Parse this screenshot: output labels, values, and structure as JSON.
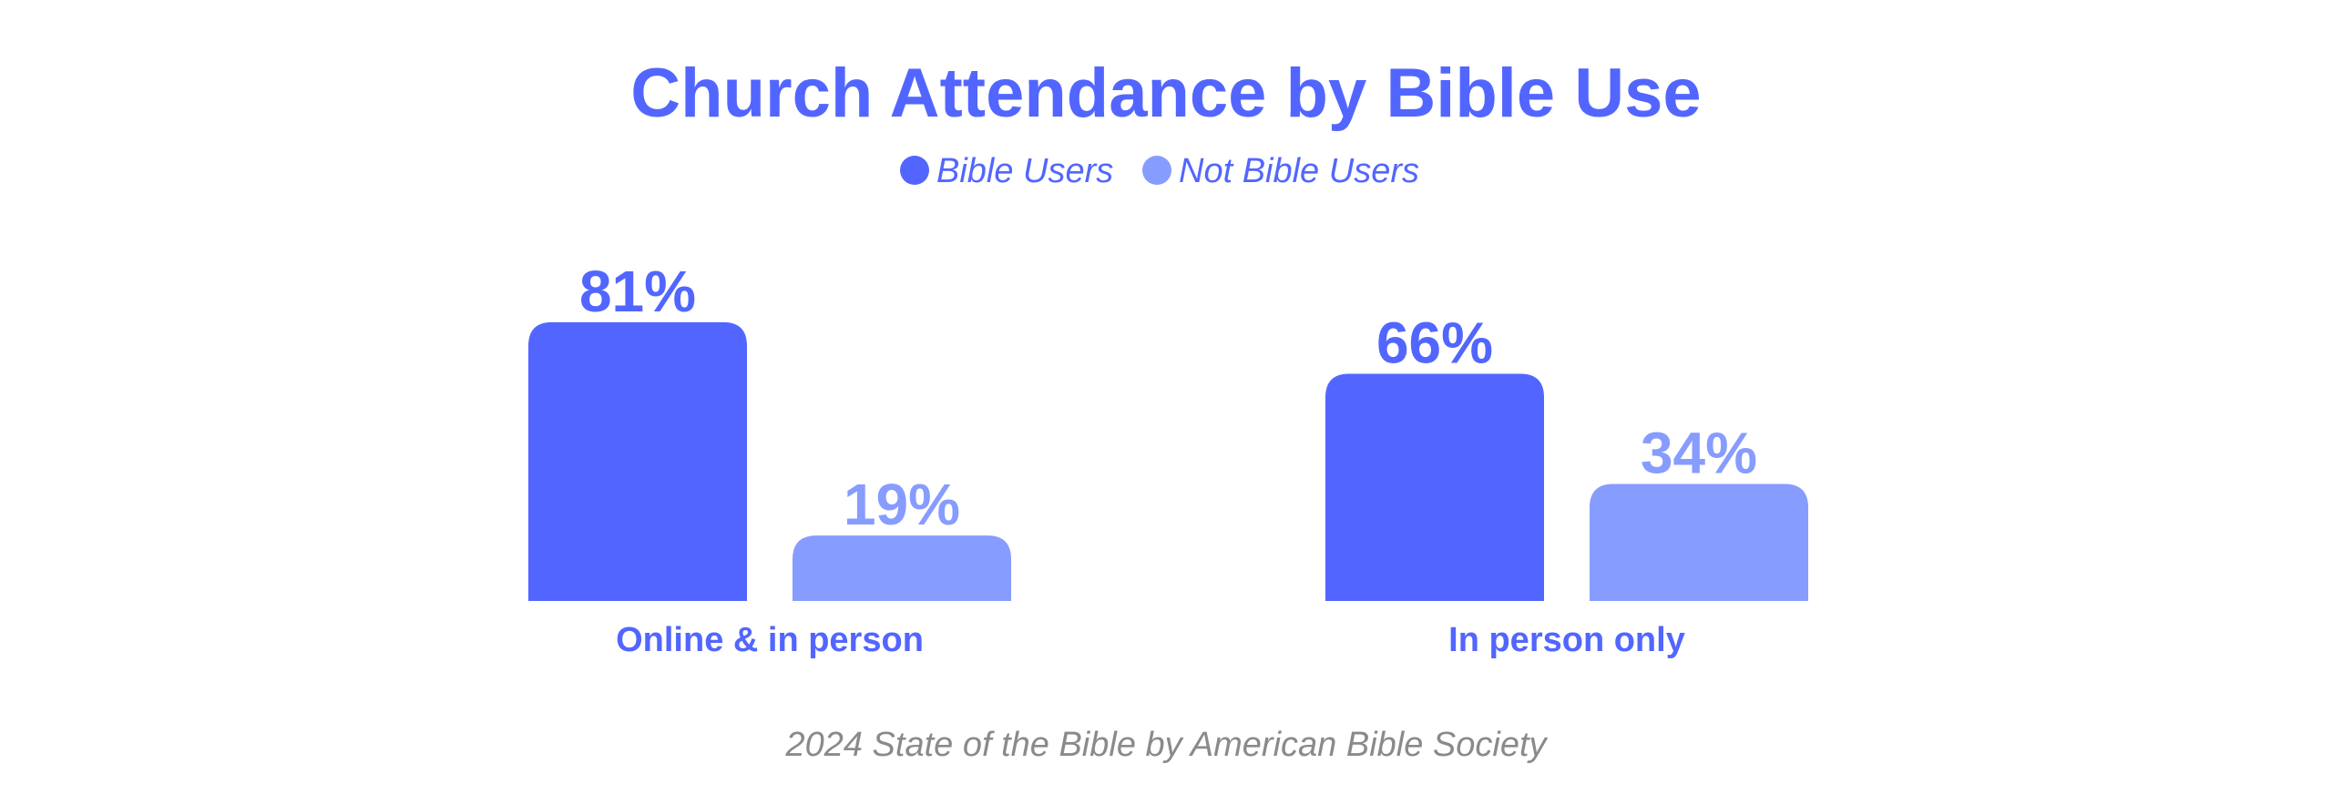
{
  "colors": {
    "bible_users": "#5266ff",
    "not_bible_users": "#879cff",
    "text_primary": "#5266ff",
    "source_text": "#8a8a8a"
  },
  "chart_data": {
    "type": "bar",
    "title": "Church Attendance by Bible Use",
    "categories": [
      "Online & in person",
      "In person only"
    ],
    "series": [
      {
        "name": "Bible Users",
        "values": [
          81,
          66
        ],
        "labels": [
          "81%",
          "66%"
        ]
      },
      {
        "name": "Not Bible Users",
        "values": [
          19,
          34
        ],
        "labels": [
          "19%",
          "34%"
        ]
      }
    ],
    "unit": "%",
    "legend": "top-center",
    "grid": false,
    "ylim": [
      0,
      100
    ]
  },
  "source": "2024 State of the Bible by American Bible Society"
}
